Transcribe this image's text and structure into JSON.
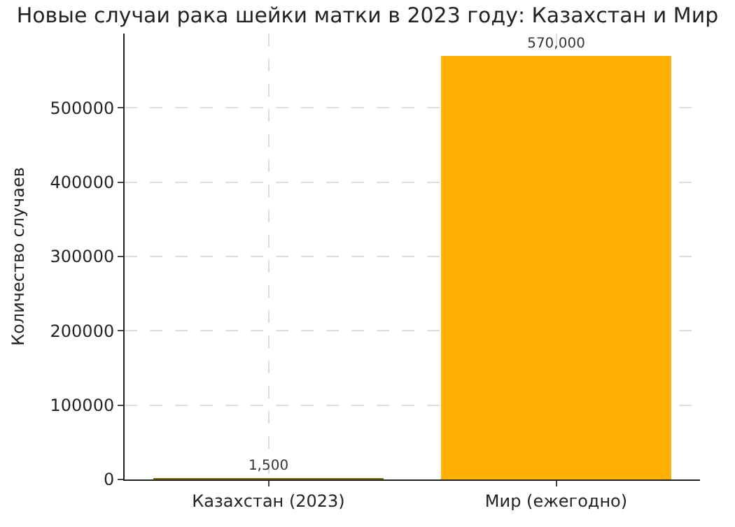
{
  "chart_data": {
    "type": "bar",
    "title": "Новые случаи рака шейки матки в 2023 году: Казахстан и Мир",
    "ylabel": "Количество случаев",
    "categories": [
      "Казахстан (2023)",
      "Мир (ежегодно)"
    ],
    "values": [
      1500,
      570000
    ],
    "colors": [
      "#7a6a00",
      "#ffb000"
    ],
    "value_labels": [
      "1,500",
      "570,000"
    ],
    "ylim": [
      0,
      600000
    ],
    "yticks": [
      0,
      100000,
      200000,
      300000,
      400000,
      500000
    ],
    "grid": true,
    "line_style": "dashed"
  }
}
